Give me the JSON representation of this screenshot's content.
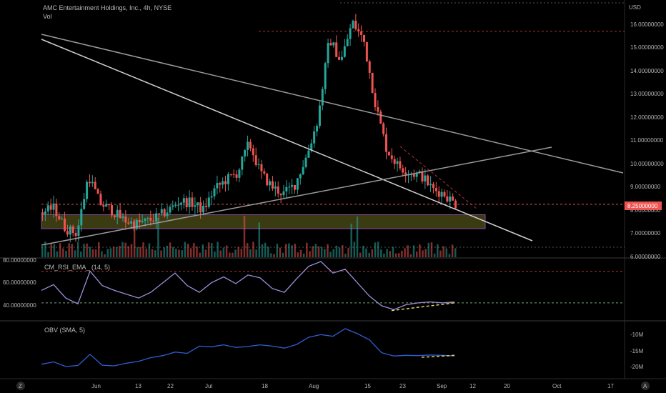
{
  "header": {
    "title": "AMC Entertainment Holdings, Inc., 4h, NYSE",
    "volume_label": "Vol",
    "currency": "USD"
  },
  "price_axis": {
    "ticks": [
      "16.00000000",
      "15.00000000",
      "14.00000000",
      "13.00000000",
      "12.00000000",
      "11.00000000",
      "10.00000000",
      "9.00000000",
      "8.00000000",
      "7.00000000",
      "6.00000000"
    ],
    "tick_values": [
      16,
      15,
      14,
      13,
      12,
      11,
      10,
      9,
      8,
      7,
      6
    ],
    "current_price": "8.25000000",
    "current_price_value": 8.25
  },
  "rsi_panel": {
    "label": "CM_RSI_EMA_ (14, 5)",
    "ticks": [
      "80.00000000",
      "60.00000000",
      "40.00000000"
    ],
    "tick_values": [
      80,
      60,
      40
    ]
  },
  "obv_panel": {
    "label": "OBV (SMA, 5)",
    "ticks": [
      "-10M",
      "-15M",
      "-20M"
    ],
    "tick_values": [
      -10,
      -15,
      -20
    ]
  },
  "time_axis": {
    "labels": [
      "Jun",
      "13",
      "22",
      "Jul",
      "18",
      "Aug",
      "15",
      "23",
      "Sep",
      "12",
      "20",
      "Oct",
      "17"
    ]
  },
  "footer": {
    "left_button": "Z",
    "right_button": "A"
  },
  "colors": {
    "up": "#26a69a",
    "down": "#ef5350",
    "trendline": "#9a9a9a",
    "support_zone": "#6b6b1f",
    "rsi_line": "#9c8fd8",
    "obv_line": "#2f5fd0",
    "divergence": "#e8d26a"
  },
  "chart_data": [
    {
      "type": "candlestick",
      "title": "AMC Entertainment Holdings, Inc., 4h, NYSE",
      "ylabel": "USD",
      "ylim": [
        6,
        16.5
      ],
      "x_labels": [
        "Jun",
        "13",
        "22",
        "Jul",
        "18",
        "Aug",
        "15",
        "23",
        "Sep",
        "12",
        "20",
        "Oct",
        "17"
      ],
      "series": [
        {
          "name": "Price (approx. close)",
          "values": [
            7.9,
            8.1,
            7.2,
            7.0,
            9.5,
            8.3,
            8.0,
            7.6,
            7.4,
            7.5,
            7.7,
            8.0,
            8.4,
            8.3,
            8.0,
            8.9,
            9.3,
            9.6,
            10.9,
            9.6,
            9.0,
            8.7,
            9.1,
            10.3,
            11.9,
            15.4,
            14.4,
            16.1,
            15.3,
            12.6,
            10.6,
            9.9,
            9.6,
            9.5,
            8.9,
            8.7,
            8.25
          ]
        }
      ],
      "current_price": 8.25,
      "horizontal_levels": [
        15.7,
        8.25,
        6.4
      ],
      "support_zone": [
        7.2,
        7.8
      ],
      "grid": false
    },
    {
      "type": "line",
      "title": "CM_RSI_EMA_ (14, 5)",
      "ylim": [
        25,
        80
      ],
      "series": [
        {
          "name": "CM_RSI_EMA_",
          "values": [
            50,
            56,
            42,
            36,
            70,
            55,
            50,
            46,
            42,
            48,
            58,
            68,
            55,
            48,
            58,
            64,
            57,
            66,
            63,
            52,
            48,
            62,
            75,
            80,
            68,
            72,
            58,
            44,
            34,
            30,
            35,
            37,
            38,
            37,
            38
          ]
        }
      ],
      "levels": [
        70,
        37
      ]
    },
    {
      "type": "line",
      "title": "OBV (SMA, 5)",
      "ylim": [
        -22,
        -7
      ],
      "series": [
        {
          "name": "OBV",
          "values": [
            -19.5,
            -18.8,
            -20.2,
            -19.9,
            -16.5,
            -19.8,
            -20.0,
            -19.2,
            -18.6,
            -17.5,
            -16.9,
            -15.8,
            -16.2,
            -14.0,
            -14.2,
            -13.6,
            -14.4,
            -14.1,
            -13.6,
            -14.0,
            -14.6,
            -13.5,
            -11.3,
            -10.5,
            -11.0,
            -8.7,
            -10.2,
            -12.1,
            -16.0,
            -17.0,
            -16.8,
            -16.9,
            -16.7,
            -16.8,
            -17.0
          ]
        }
      ]
    }
  ]
}
